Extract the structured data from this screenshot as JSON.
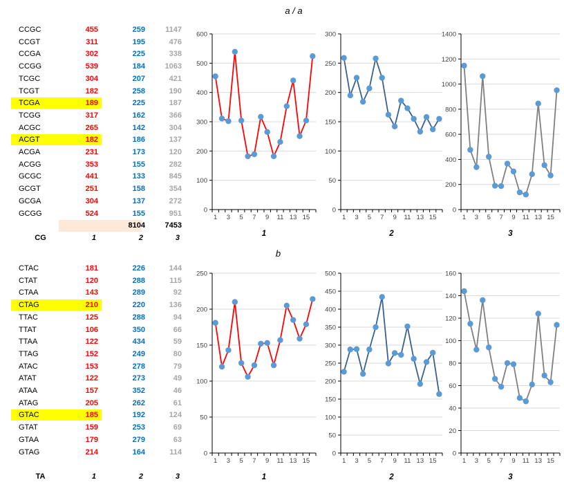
{
  "titles": {
    "section_a": "a / a",
    "section_b": "b"
  },
  "colors": {
    "col1_text": "#FF0000",
    "col2_text": "#0070C0",
    "col3_text": "#A6A6A6",
    "row_highlight": "#FFFF00",
    "totals_bg": "#FDE9D9",
    "red_line": "#FF0000",
    "blue_line": "#376091",
    "gray_line": "#7F7F7F",
    "marker": "#5B9BD5",
    "grid": "#D9D9D9",
    "axis": "#000000",
    "axis_text": "#404040"
  },
  "table_a": {
    "group_label": "CG",
    "column_footer": [
      "1",
      "2",
      "3"
    ],
    "totals": {
      "col2": "8104",
      "col3": "7453"
    },
    "rows": [
      {
        "label": "CCGC",
        "c1": 455,
        "c2": 259,
        "c3": 1147,
        "highlight": false
      },
      {
        "label": "CCGT",
        "c1": 311,
        "c2": 195,
        "c3": 476,
        "highlight": false
      },
      {
        "label": "CCGA",
        "c1": 302,
        "c2": 225,
        "c3": 338,
        "highlight": false
      },
      {
        "label": "CCGG",
        "c1": 539,
        "c2": 184,
        "c3": 1063,
        "highlight": false
      },
      {
        "label": "TCGC",
        "c1": 304,
        "c2": 207,
        "c3": 421,
        "highlight": false
      },
      {
        "label": "TCGT",
        "c1": 182,
        "c2": 258,
        "c3": 190,
        "highlight": false
      },
      {
        "label": "TCGA",
        "c1": 189,
        "c2": 225,
        "c3": 187,
        "highlight": true
      },
      {
        "label": "TCGG",
        "c1": 317,
        "c2": 162,
        "c3": 366,
        "highlight": false
      },
      {
        "label": "ACGC",
        "c1": 265,
        "c2": 142,
        "c3": 304,
        "highlight": false
      },
      {
        "label": "ACGT",
        "c1": 182,
        "c2": 186,
        "c3": 137,
        "highlight": true
      },
      {
        "label": "ACGA",
        "c1": 231,
        "c2": 173,
        "c3": 120,
        "highlight": false
      },
      {
        "label": "ACGG",
        "c1": 353,
        "c2": 155,
        "c3": 282,
        "highlight": false
      },
      {
        "label": "GCGC",
        "c1": 441,
        "c2": 133,
        "c3": 845,
        "highlight": false
      },
      {
        "label": "GCGT",
        "c1": 251,
        "c2": 158,
        "c3": 354,
        "highlight": false
      },
      {
        "label": "GCGA",
        "c1": 304,
        "c2": 137,
        "c3": 272,
        "highlight": false
      },
      {
        "label": "GCGG",
        "c1": 524,
        "c2": 155,
        "c3": 951,
        "highlight": false
      }
    ]
  },
  "table_b": {
    "group_label": "TA",
    "column_footer": [
      "1",
      "2",
      "3"
    ],
    "rows": [
      {
        "label": "CTAC",
        "c1": 181,
        "c2": 226,
        "c3": 144,
        "highlight": false
      },
      {
        "label": "CTAT",
        "c1": 120,
        "c2": 288,
        "c3": 115,
        "highlight": false
      },
      {
        "label": "CTAA",
        "c1": 143,
        "c2": 289,
        "c3": 92,
        "highlight": false
      },
      {
        "label": "CTAG",
        "c1": 210,
        "c2": 220,
        "c3": 136,
        "highlight": true
      },
      {
        "label": "TTAC",
        "c1": 125,
        "c2": 288,
        "c3": 94,
        "highlight": false
      },
      {
        "label": "TTAT",
        "c1": 106,
        "c2": 350,
        "c3": 66,
        "highlight": false
      },
      {
        "label": "TTAA",
        "c1": 122,
        "c2": 434,
        "c3": 59,
        "highlight": false
      },
      {
        "label": "TTAG",
        "c1": 152,
        "c2": 249,
        "c3": 80,
        "highlight": false
      },
      {
        "label": "ATAC",
        "c1": 153,
        "c2": 278,
        "c3": 79,
        "highlight": false
      },
      {
        "label": "ATAT",
        "c1": 122,
        "c2": 273,
        "c3": 49,
        "highlight": false
      },
      {
        "label": "ATAA",
        "c1": 157,
        "c2": 352,
        "c3": 46,
        "highlight": false
      },
      {
        "label": "ATAG",
        "c1": 205,
        "c2": 262,
        "c3": 61,
        "highlight": false
      },
      {
        "label": "GTAC",
        "c1": 185,
        "c2": 192,
        "c3": 124,
        "highlight": true
      },
      {
        "label": "GTAT",
        "c1": 159,
        "c2": 253,
        "c3": 69,
        "highlight": false
      },
      {
        "label": "GTAA",
        "c1": 179,
        "c2": 279,
        "c3": 63,
        "highlight": false
      },
      {
        "label": "GTAG",
        "c1": 214,
        "c2": 164,
        "c3": 114,
        "highlight": false
      }
    ]
  },
  "chart_data": [
    {
      "id": "a1",
      "type": "line",
      "section": "a",
      "axis_title": "1",
      "x": [
        1,
        2,
        3,
        4,
        5,
        6,
        7,
        8,
        9,
        10,
        11,
        12,
        13,
        14,
        15,
        16
      ],
      "values": [
        455,
        311,
        302,
        539,
        304,
        182,
        189,
        317,
        265,
        182,
        231,
        353,
        441,
        251,
        304,
        524
      ],
      "ylim": [
        0,
        600
      ],
      "ytick_step": 100,
      "xtick_labels": [
        "1",
        "3",
        "5",
        "7",
        "9",
        "11",
        "13",
        "15"
      ],
      "line_color": "#FF0000",
      "marker_color": "#5B9BD5",
      "grid": true,
      "legend": false
    },
    {
      "id": "a2",
      "type": "line",
      "section": "a",
      "axis_title": "2",
      "x": [
        1,
        2,
        3,
        4,
        5,
        6,
        7,
        8,
        9,
        10,
        11,
        12,
        13,
        14,
        15,
        16
      ],
      "values": [
        259,
        195,
        225,
        184,
        207,
        258,
        225,
        162,
        142,
        186,
        173,
        155,
        133,
        158,
        137,
        155
      ],
      "ylim": [
        0,
        300
      ],
      "ytick_step": 50,
      "xtick_labels": [
        "1",
        "3",
        "5",
        "7",
        "9",
        "11",
        "13",
        "15"
      ],
      "line_color": "#376091",
      "marker_color": "#5B9BD5",
      "grid": true,
      "legend": false
    },
    {
      "id": "a3",
      "type": "line",
      "section": "a",
      "axis_title": "3",
      "x": [
        1,
        2,
        3,
        4,
        5,
        6,
        7,
        8,
        9,
        10,
        11,
        12,
        13,
        14,
        15,
        16
      ],
      "values": [
        1147,
        476,
        338,
        1063,
        421,
        190,
        187,
        366,
        304,
        137,
        120,
        282,
        845,
        354,
        272,
        951
      ],
      "ylim": [
        0,
        1400
      ],
      "ytick_step": 200,
      "xtick_labels": [
        "1",
        "3",
        "5",
        "7",
        "9",
        "11",
        "13",
        "15"
      ],
      "line_color": "#7F7F7F",
      "marker_color": "#5B9BD5",
      "grid": true,
      "legend": false
    },
    {
      "id": "b1",
      "type": "line",
      "section": "b",
      "axis_title": "1",
      "x": [
        1,
        2,
        3,
        4,
        5,
        6,
        7,
        8,
        9,
        10,
        11,
        12,
        13,
        14,
        15,
        16
      ],
      "values": [
        181,
        120,
        143,
        210,
        125,
        106,
        122,
        152,
        153,
        122,
        157,
        205,
        185,
        159,
        179,
        214
      ],
      "ylim": [
        0,
        250
      ],
      "ytick_step": 50,
      "xtick_labels": [
        "1",
        "3",
        "5",
        "7",
        "9",
        "11",
        "13",
        "15"
      ],
      "line_color": "#FF0000",
      "marker_color": "#5B9BD5",
      "grid": true,
      "legend": false
    },
    {
      "id": "b2",
      "type": "line",
      "section": "b",
      "axis_title": "2",
      "x": [
        1,
        2,
        3,
        4,
        5,
        6,
        7,
        8,
        9,
        10,
        11,
        12,
        13,
        14,
        15,
        16
      ],
      "values": [
        226,
        288,
        289,
        220,
        288,
        350,
        434,
        249,
        278,
        273,
        352,
        262,
        192,
        253,
        279,
        164
      ],
      "ylim": [
        0,
        500
      ],
      "ytick_step": 50,
      "xtick_labels": [
        "1",
        "3",
        "5",
        "7",
        "9",
        "11",
        "13",
        "15"
      ],
      "line_color": "#376091",
      "marker_color": "#5B9BD5",
      "grid": true,
      "legend": false
    },
    {
      "id": "b3",
      "type": "line",
      "section": "b",
      "axis_title": "3",
      "x": [
        1,
        2,
        3,
        4,
        5,
        6,
        7,
        8,
        9,
        10,
        11,
        12,
        13,
        14,
        15,
        16
      ],
      "values": [
        144,
        115,
        92,
        136,
        94,
        66,
        59,
        80,
        79,
        49,
        46,
        61,
        124,
        69,
        63,
        114
      ],
      "ylim": [
        0,
        160
      ],
      "ytick_step": 20,
      "xtick_labels": [
        "1",
        "3",
        "5",
        "7",
        "9",
        "11",
        "13",
        "15"
      ],
      "line_color": "#7F7F7F",
      "marker_color": "#5B9BD5",
      "grid": true,
      "legend": false
    }
  ]
}
